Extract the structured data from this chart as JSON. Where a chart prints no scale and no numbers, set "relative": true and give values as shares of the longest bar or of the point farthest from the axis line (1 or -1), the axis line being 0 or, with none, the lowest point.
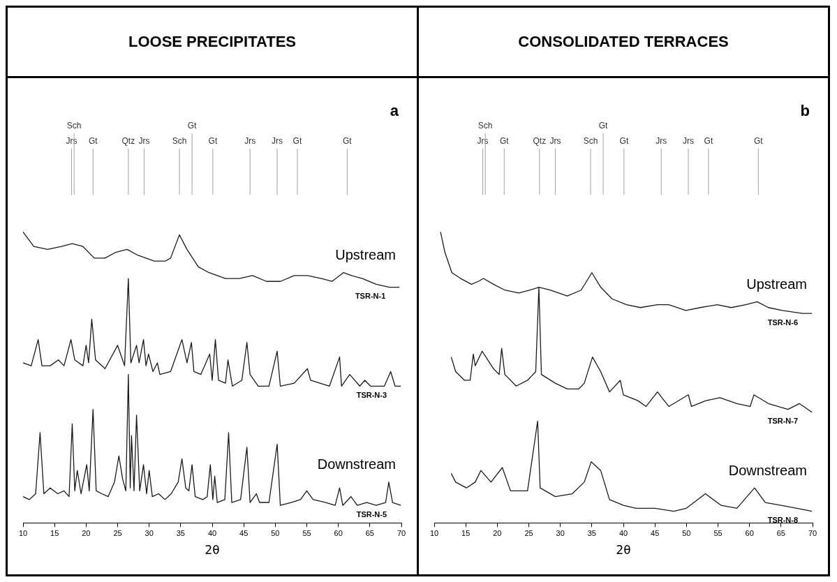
{
  "chart_data": [
    {
      "type": "line",
      "title": "LOOSE PRECIPITATES",
      "xlabel": "2θ",
      "relative": true,
      "xlim": [
        10,
        70
      ],
      "xticks": [
        10,
        15,
        20,
        25,
        30,
        35,
        40,
        45,
        50,
        55,
        60,
        65,
        70
      ],
      "grid": false,
      "legend": false,
      "marker": "none",
      "ref_lines": [
        {
          "axis": "x",
          "value": 17.7,
          "label": "Jrs",
          "color": "#a0a0a0"
        },
        {
          "axis": "x",
          "value": 18.1,
          "label": "Sch",
          "color": "#a0a0a0"
        },
        {
          "axis": "x",
          "value": 21.1,
          "label": "Gt",
          "color": "#a0a0a0"
        },
        {
          "axis": "x",
          "value": 26.7,
          "label": "Qtz",
          "color": "#a0a0a0"
        },
        {
          "axis": "x",
          "value": 29.2,
          "label": "Jrs",
          "color": "#a0a0a0"
        },
        {
          "axis": "x",
          "value": 34.8,
          "label": "Sch",
          "color": "#a0a0a0"
        },
        {
          "axis": "x",
          "value": 36.8,
          "label": "Gt",
          "color": "#a0a0a0"
        },
        {
          "axis": "x",
          "value": 40.1,
          "label": "Gt",
          "color": "#a0a0a0"
        },
        {
          "axis": "x",
          "value": 46.0,
          "label": "Jrs",
          "color": "#a0a0a0"
        },
        {
          "axis": "x",
          "value": 50.3,
          "label": "Jrs",
          "color": "#a0a0a0"
        },
        {
          "axis": "x",
          "value": 53.5,
          "label": "Gt",
          "color": "#a0a0a0"
        },
        {
          "axis": "x",
          "value": 61.4,
          "label": "Gt",
          "color": "#a0a0a0"
        }
      ],
      "annotations": [
        "a",
        "Upstream",
        "Downstream"
      ],
      "series": [
        {
          "name": "TSR-N-1",
          "color": "#1a1a1a",
          "x": [
            10.0,
            11.7,
            13.9,
            16.1,
            17.8,
            19.5,
            21.3,
            23.0,
            24.7,
            26.5,
            28.2,
            30.8,
            32.6,
            33.4,
            34.8,
            36.0,
            37.8,
            39.5,
            42.1,
            44.3,
            46.4,
            48.6,
            50.8,
            53.0,
            55.1,
            57.3,
            59.0,
            60.8,
            62.1,
            63.8,
            66.0,
            68.1,
            69.7
          ],
          "values": [
            1.0,
            0.95,
            0.94,
            0.95,
            0.96,
            0.95,
            0.91,
            0.91,
            0.93,
            0.94,
            0.92,
            0.9,
            0.9,
            0.91,
            0.99,
            0.94,
            0.88,
            0.86,
            0.84,
            0.84,
            0.85,
            0.83,
            0.83,
            0.85,
            0.85,
            0.84,
            0.83,
            0.86,
            0.85,
            0.84,
            0.82,
            0.81,
            0.81
          ]
        },
        {
          "name": "TSR-N-3",
          "color": "#1a1a1a",
          "x": [
            10.0,
            11.3,
            12.4,
            13.0,
            14.3,
            15.6,
            16.5,
            17.6,
            18.2,
            19.5,
            20.0,
            20.4,
            20.9,
            21.5,
            23.0,
            25.0,
            26.1,
            26.7,
            27.1,
            28.0,
            28.4,
            29.1,
            29.5,
            29.9,
            30.6,
            31.3,
            31.7,
            33.4,
            35.2,
            36.0,
            36.7,
            37.1,
            38.2,
            39.6,
            40.0,
            40.5,
            41.0,
            42.1,
            42.5,
            43.2,
            44.7,
            45.5,
            46.0,
            47.3,
            49.0,
            50.3,
            50.8,
            53.0,
            55.1,
            55.6,
            58.6,
            60.2,
            60.5,
            61.8,
            63.4,
            64.2,
            65.1,
            67.3,
            68.3,
            69.0,
            69.9
          ],
          "values": [
            0.55,
            0.54,
            0.63,
            0.54,
            0.54,
            0.56,
            0.54,
            0.63,
            0.56,
            0.54,
            0.61,
            0.55,
            0.7,
            0.56,
            0.53,
            0.61,
            0.54,
            0.84,
            0.55,
            0.61,
            0.55,
            0.63,
            0.54,
            0.58,
            0.52,
            0.55,
            0.51,
            0.52,
            0.63,
            0.55,
            0.62,
            0.52,
            0.51,
            0.58,
            0.49,
            0.63,
            0.49,
            0.48,
            0.56,
            0.47,
            0.49,
            0.62,
            0.51,
            0.47,
            0.47,
            0.59,
            0.47,
            0.48,
            0.53,
            0.49,
            0.47,
            0.57,
            0.47,
            0.51,
            0.47,
            0.49,
            0.47,
            0.47,
            0.52,
            0.47,
            0.47
          ]
        },
        {
          "name": "TSR-N-5",
          "color": "#1a1a1a",
          "x": [
            10.0,
            11.0,
            12.0,
            12.7,
            13.3,
            14.3,
            15.5,
            16.5,
            17.3,
            17.8,
            18.2,
            18.6,
            19.2,
            20.1,
            20.5,
            21.1,
            21.6,
            22.5,
            23.5,
            24.5,
            25.2,
            25.8,
            26.3,
            26.7,
            27.0,
            27.2,
            27.6,
            28.0,
            28.5,
            29.1,
            29.6,
            30.0,
            30.5,
            31.5,
            32.5,
            33.5,
            34.6,
            35.2,
            35.8,
            36.3,
            36.8,
            37.3,
            38.5,
            39.2,
            39.7,
            40.1,
            40.4,
            40.8,
            42.0,
            42.6,
            43.1,
            44.5,
            45.5,
            46.0,
            47.0,
            47.5,
            49.0,
            50.3,
            50.8,
            52.5,
            54.0,
            55.0,
            56.0,
            58.0,
            59.5,
            60.2,
            60.7,
            62.0,
            63.0,
            64.5,
            66.0,
            67.5,
            68.0,
            68.6,
            69.9
          ],
          "values": [
            0.09,
            0.08,
            0.1,
            0.31,
            0.1,
            0.12,
            0.1,
            0.11,
            0.09,
            0.34,
            0.11,
            0.18,
            0.1,
            0.2,
            0.11,
            0.39,
            0.11,
            0.1,
            0.09,
            0.14,
            0.23,
            0.15,
            0.11,
            0.51,
            0.12,
            0.3,
            0.11,
            0.37,
            0.11,
            0.2,
            0.1,
            0.18,
            0.09,
            0.1,
            0.08,
            0.1,
            0.14,
            0.22,
            0.12,
            0.11,
            0.2,
            0.09,
            0.08,
            0.09,
            0.2,
            0.08,
            0.16,
            0.07,
            0.08,
            0.31,
            0.07,
            0.08,
            0.26,
            0.07,
            0.1,
            0.07,
            0.07,
            0.27,
            0.06,
            0.07,
            0.08,
            0.11,
            0.08,
            0.07,
            0.06,
            0.12,
            0.06,
            0.09,
            0.06,
            0.07,
            0.06,
            0.07,
            0.14,
            0.07,
            0.06
          ]
        }
      ]
    },
    {
      "type": "line",
      "title": "CONSOLIDATED TERRACES",
      "xlabel": "2θ",
      "relative": true,
      "xlim": [
        10,
        70
      ],
      "xticks": [
        10,
        15,
        20,
        25,
        30,
        35,
        40,
        45,
        50,
        55,
        60,
        65,
        70
      ],
      "grid": false,
      "legend": false,
      "marker": "none",
      "ref_lines": [
        {
          "axis": "x",
          "value": 17.7,
          "label": "Jrs",
          "color": "#a0a0a0"
        },
        {
          "axis": "x",
          "value": 18.1,
          "label": "Sch",
          "color": "#a0a0a0"
        },
        {
          "axis": "x",
          "value": 21.1,
          "label": "Gt",
          "color": "#a0a0a0"
        },
        {
          "axis": "x",
          "value": 26.7,
          "label": "Qtz",
          "color": "#a0a0a0"
        },
        {
          "axis": "x",
          "value": 29.2,
          "label": "Jrs",
          "color": "#a0a0a0"
        },
        {
          "axis": "x",
          "value": 34.8,
          "label": "Sch",
          "color": "#a0a0a0"
        },
        {
          "axis": "x",
          "value": 36.8,
          "label": "Gt",
          "color": "#a0a0a0"
        },
        {
          "axis": "x",
          "value": 40.1,
          "label": "Gt",
          "color": "#a0a0a0"
        },
        {
          "axis": "x",
          "value": 46.0,
          "label": "Jrs",
          "color": "#a0a0a0"
        },
        {
          "axis": "x",
          "value": 50.3,
          "label": "Jrs",
          "color": "#a0a0a0"
        },
        {
          "axis": "x",
          "value": 53.5,
          "label": "Gt",
          "color": "#a0a0a0"
        },
        {
          "axis": "x",
          "value": 61.4,
          "label": "Gt",
          "color": "#a0a0a0"
        }
      ],
      "annotations": [
        "b",
        "Upstream",
        "Downstream"
      ],
      "series": [
        {
          "name": "TSR-N-6",
          "color": "#1a1a1a",
          "x": [
            11.0,
            11.7,
            12.8,
            14.2,
            15.9,
            17.0,
            17.8,
            19.4,
            21.2,
            23.4,
            25.2,
            26.6,
            28.4,
            31.1,
            33.3,
            35.0,
            36.4,
            38.2,
            40.5,
            42.7,
            45.4,
            47.2,
            49.9,
            52.2,
            54.9,
            57.1,
            59.4,
            61.2,
            63.0,
            65.2,
            68.4,
            69.9
          ],
          "values": [
            1.0,
            0.93,
            0.86,
            0.84,
            0.82,
            0.83,
            0.84,
            0.82,
            0.8,
            0.79,
            0.8,
            0.81,
            0.8,
            0.78,
            0.8,
            0.86,
            0.81,
            0.77,
            0.75,
            0.74,
            0.75,
            0.75,
            0.73,
            0.74,
            0.75,
            0.74,
            0.75,
            0.76,
            0.74,
            0.73,
            0.72,
            0.72
          ]
        },
        {
          "name": "TSR-N-7",
          "color": "#1a1a1a",
          "x": [
            12.7,
            13.4,
            14.8,
            15.7,
            16.2,
            16.5,
            17.6,
            19.4,
            20.3,
            20.7,
            21.2,
            23.0,
            24.8,
            26.1,
            26.6,
            27.0,
            29.2,
            31.1,
            32.9,
            33.8,
            35.1,
            36.4,
            37.8,
            39.5,
            40.0,
            42.3,
            43.6,
            45.4,
            47.2,
            50.3,
            50.8,
            53.1,
            55.3,
            58.0,
            60.1,
            60.7,
            63.0,
            66.1,
            67.9,
            69.9
          ],
          "values": [
            0.57,
            0.52,
            0.49,
            0.49,
            0.58,
            0.54,
            0.59,
            0.53,
            0.51,
            0.6,
            0.51,
            0.47,
            0.49,
            0.52,
            0.81,
            0.51,
            0.48,
            0.46,
            0.46,
            0.48,
            0.57,
            0.52,
            0.45,
            0.49,
            0.44,
            0.42,
            0.4,
            0.45,
            0.4,
            0.44,
            0.4,
            0.42,
            0.43,
            0.41,
            0.4,
            0.44,
            0.41,
            0.39,
            0.41,
            0.38
          ]
        },
        {
          "name": "TSR-N-8",
          "color": "#1a1a1a",
          "x": [
            12.7,
            13.4,
            15.1,
            16.5,
            17.4,
            19.0,
            20.8,
            22.1,
            24.8,
            26.4,
            26.8,
            29.2,
            31.9,
            33.8,
            34.9,
            36.4,
            37.8,
            40.0,
            42.0,
            45.0,
            48.0,
            50.0,
            53.0,
            55.5,
            58.0,
            60.8,
            62.5,
            65.0,
            67.5,
            69.9
          ],
          "values": [
            0.17,
            0.14,
            0.12,
            0.14,
            0.18,
            0.14,
            0.19,
            0.11,
            0.11,
            0.35,
            0.12,
            0.09,
            0.1,
            0.14,
            0.21,
            0.18,
            0.08,
            0.06,
            0.05,
            0.05,
            0.04,
            0.05,
            0.1,
            0.06,
            0.05,
            0.12,
            0.07,
            0.06,
            0.05,
            0.04
          ]
        }
      ]
    }
  ]
}
